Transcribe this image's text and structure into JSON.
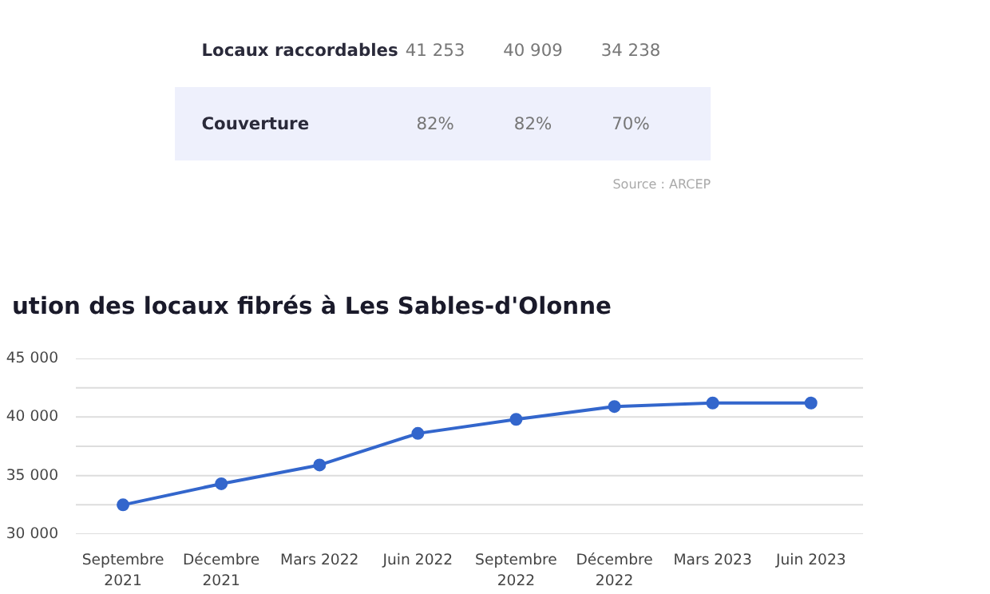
{
  "chart_data": [
    {
      "type": "other",
      "annotations": [
        "Locaux raccordables",
        "41 253",
        "40 909",
        "34 238",
        "Couverture",
        "82%",
        "82%",
        "70%",
        "Source : ARCEP"
      ]
    },
    {
      "type": "line",
      "title": "ution des locaux fibrés à Les Sables-d'Olonne",
      "categories": [
        "Septembre 2021",
        "Décembre 2021",
        "Mars 2022",
        "Juin 2022",
        "Septembre 2022",
        "Décembre 2022",
        "Mars 2023",
        "Juin 2023"
      ],
      "series": [
        {
          "color": "#3366cc",
          "values": [
            32500,
            34300,
            35900,
            38600,
            39800,
            40900,
            41200,
            41200
          ]
        }
      ],
      "ylim": [
        30000,
        45000
      ],
      "yticks": [
        {
          "value": 30000,
          "label": "30 000"
        },
        {
          "value": 32500,
          "label": null
        },
        {
          "value": 35000,
          "label": "35 000"
        },
        {
          "value": 37500,
          "label": null
        },
        {
          "value": 40000,
          "label": "40 000"
        },
        {
          "value": 42500,
          "label": null
        },
        {
          "value": 45000,
          "label": "45 000"
        }
      ],
      "grid": "y",
      "marker": "circle",
      "line_style": "solid"
    }
  ]
}
